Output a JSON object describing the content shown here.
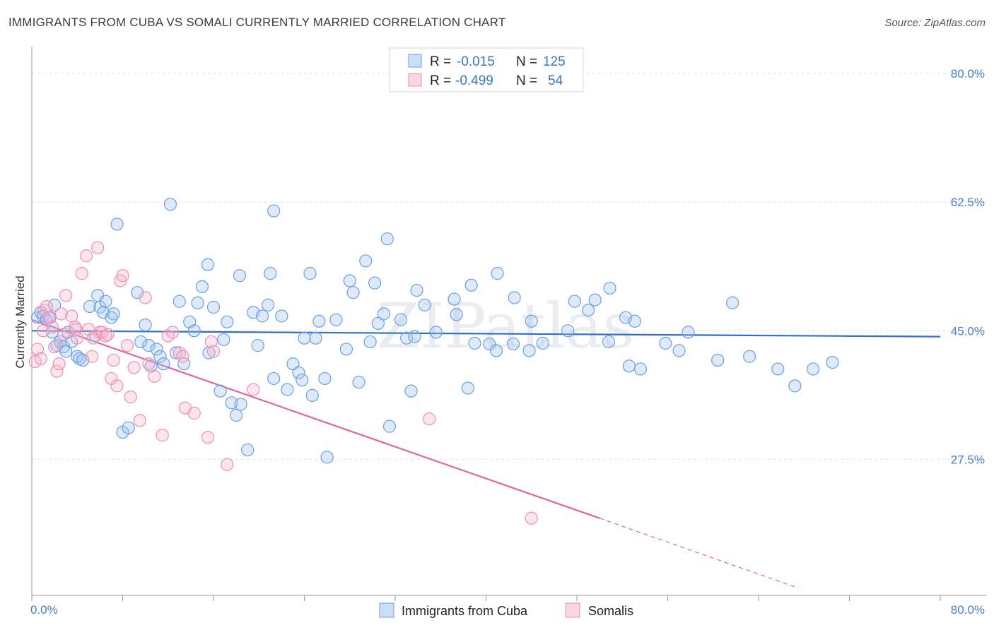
{
  "title": "IMMIGRANTS FROM CUBA VS SOMALI CURRENTLY MARRIED CORRELATION CHART",
  "source": "Source: ZipAtlas.com",
  "watermark": "ZIPatlas",
  "legend": {
    "rows": [
      {
        "r_label": "R =",
        "r_value": "-0.015",
        "n_label": "N =",
        "n_value": "125",
        "color": "#6c9fe0"
      },
      {
        "r_label": "R =",
        "r_value": "-0.499",
        "n_label": "N =",
        "n_value": "54",
        "color": "#ee8fb0"
      }
    ]
  },
  "chart_data": {
    "type": "scatter",
    "xlabel": "",
    "ylabel": "Currently Married",
    "xlim": [
      0,
      80
    ],
    "ylim": [
      9,
      82.5
    ],
    "x_tick_labels": [
      "0.0%",
      "80.0%"
    ],
    "y_ticks": [
      27.5,
      45.0,
      62.5,
      80.0
    ],
    "y_tick_labels": [
      "27.5%",
      "45.0%",
      "62.5%",
      "80.0%"
    ],
    "grid": true,
    "legend_position": "top-center",
    "series": [
      {
        "name": "Immigrants from Cuba",
        "color": "#6c9fe0",
        "fill": "rgba(160,195,240,0.35)",
        "trend": {
          "x": [
            0,
            80
          ],
          "y": [
            45.0,
            44.2
          ]
        },
        "points": [
          [
            0.5,
            46.8
          ],
          [
            0.8,
            47.5
          ],
          [
            1.0,
            47.0
          ],
          [
            1.3,
            46.5
          ],
          [
            1.6,
            46.8
          ],
          [
            1.8,
            44.8
          ],
          [
            2.0,
            48.5
          ],
          [
            2.2,
            43.0
          ],
          [
            2.5,
            43.5
          ],
          [
            2.8,
            42.8
          ],
          [
            3.0,
            42.2
          ],
          [
            3.2,
            44.8
          ],
          [
            3.5,
            43.5
          ],
          [
            4.0,
            41.5
          ],
          [
            4.2,
            41.2
          ],
          [
            4.5,
            41.0
          ],
          [
            5.1,
            48.3
          ],
          [
            5.6,
            44.3
          ],
          [
            5.8,
            49.8
          ],
          [
            6.0,
            48.2
          ],
          [
            6.3,
            47.5
          ],
          [
            6.5,
            49.0
          ],
          [
            7.0,
            46.8
          ],
          [
            7.2,
            47.3
          ],
          [
            7.5,
            59.5
          ],
          [
            8.0,
            31.2
          ],
          [
            8.5,
            31.8
          ],
          [
            9.3,
            50.2
          ],
          [
            9.6,
            43.5
          ],
          [
            10.0,
            45.8
          ],
          [
            10.3,
            43.0
          ],
          [
            10.5,
            40.2
          ],
          [
            11.0,
            42.5
          ],
          [
            11.3,
            41.5
          ],
          [
            11.6,
            40.5
          ],
          [
            12.2,
            62.2
          ],
          [
            12.7,
            42.0
          ],
          [
            13.0,
            49.0
          ],
          [
            13.4,
            40.5
          ],
          [
            13.9,
            46.2
          ],
          [
            14.3,
            45.0
          ],
          [
            14.6,
            48.8
          ],
          [
            15.0,
            51.0
          ],
          [
            15.5,
            54.0
          ],
          [
            15.6,
            42.0
          ],
          [
            16.0,
            48.2
          ],
          [
            16.6,
            36.8
          ],
          [
            16.9,
            43.8
          ],
          [
            17.2,
            46.2
          ],
          [
            17.6,
            35.2
          ],
          [
            18.0,
            33.5
          ],
          [
            18.3,
            52.5
          ],
          [
            18.4,
            35.0
          ],
          [
            19.0,
            28.8
          ],
          [
            19.5,
            47.5
          ],
          [
            19.9,
            43.0
          ],
          [
            20.3,
            47.0
          ],
          [
            20.8,
            48.5
          ],
          [
            21.0,
            52.8
          ],
          [
            21.3,
            61.3
          ],
          [
            21.3,
            38.5
          ],
          [
            22.0,
            47.0
          ],
          [
            22.5,
            37.0
          ],
          [
            23.0,
            40.5
          ],
          [
            23.5,
            39.3
          ],
          [
            23.8,
            38.3
          ],
          [
            24.0,
            44.0
          ],
          [
            24.5,
            52.8
          ],
          [
            24.7,
            36.2
          ],
          [
            25.0,
            44.0
          ],
          [
            25.3,
            46.3
          ],
          [
            25.8,
            38.5
          ],
          [
            26.0,
            27.8
          ],
          [
            26.8,
            46.5
          ],
          [
            27.7,
            42.5
          ],
          [
            28.0,
            51.8
          ],
          [
            28.3,
            50.2
          ],
          [
            28.8,
            38.0
          ],
          [
            29.4,
            54.5
          ],
          [
            29.8,
            43.5
          ],
          [
            30.2,
            51.5
          ],
          [
            30.5,
            46.0
          ],
          [
            31.0,
            47.3
          ],
          [
            31.3,
            57.5
          ],
          [
            31.5,
            32.0
          ],
          [
            32.5,
            46.5
          ],
          [
            33.0,
            44.0
          ],
          [
            33.4,
            36.8
          ],
          [
            33.7,
            44.2
          ],
          [
            33.9,
            50.5
          ],
          [
            34.6,
            48.5
          ],
          [
            35.6,
            44.8
          ],
          [
            37.2,
            49.3
          ],
          [
            37.4,
            47.2
          ],
          [
            38.4,
            37.2
          ],
          [
            38.7,
            51.2
          ],
          [
            39.0,
            43.3
          ],
          [
            40.3,
            43.2
          ],
          [
            40.9,
            42.3
          ],
          [
            41.0,
            52.8
          ],
          [
            42.4,
            43.2
          ],
          [
            42.5,
            49.5
          ],
          [
            43.8,
            42.3
          ],
          [
            44.0,
            46.3
          ],
          [
            45.0,
            43.3
          ],
          [
            47.2,
            45.0
          ],
          [
            47.8,
            49.0
          ],
          [
            49.0,
            47.8
          ],
          [
            49.6,
            49.2
          ],
          [
            50.8,
            43.5
          ],
          [
            50.9,
            50.8
          ],
          [
            52.3,
            46.8
          ],
          [
            52.6,
            40.2
          ],
          [
            53.1,
            46.3
          ],
          [
            53.6,
            39.8
          ],
          [
            55.8,
            43.3
          ],
          [
            57.0,
            42.3
          ],
          [
            57.8,
            44.8
          ],
          [
            60.4,
            41.0
          ],
          [
            61.7,
            48.8
          ],
          [
            63.2,
            41.5
          ],
          [
            65.7,
            39.8
          ],
          [
            67.2,
            37.5
          ],
          [
            68.8,
            39.8
          ],
          [
            70.5,
            40.7
          ]
        ]
      },
      {
        "name": "Somalis",
        "color": "#ee8fb0",
        "fill": "rgba(245,180,205,0.35)",
        "trend": {
          "x": [
            0,
            50
          ],
          "y": [
            46.5,
            19.5
          ]
        },
        "trend_dashed": {
          "x": [
            50,
            67.5
          ],
          "y": [
            19.5,
            10.0
          ]
        },
        "points": [
          [
            0.3,
            40.8
          ],
          [
            0.5,
            42.5
          ],
          [
            0.8,
            41.2
          ],
          [
            1.0,
            45.0
          ],
          [
            1.1,
            47.8
          ],
          [
            1.3,
            48.3
          ],
          [
            1.5,
            46.8
          ],
          [
            1.8,
            45.5
          ],
          [
            2.0,
            42.8
          ],
          [
            2.2,
            39.5
          ],
          [
            2.4,
            40.5
          ],
          [
            2.6,
            47.3
          ],
          [
            2.8,
            44.5
          ],
          [
            3.0,
            49.8
          ],
          [
            3.5,
            47.0
          ],
          [
            3.8,
            45.5
          ],
          [
            3.9,
            45.2
          ],
          [
            4.0,
            44.0
          ],
          [
            4.4,
            52.8
          ],
          [
            4.8,
            55.2
          ],
          [
            5.0,
            45.2
          ],
          [
            5.3,
            41.5
          ],
          [
            5.4,
            44.0
          ],
          [
            5.8,
            56.3
          ],
          [
            6.0,
            44.8
          ],
          [
            6.2,
            44.8
          ],
          [
            6.5,
            44.3
          ],
          [
            6.7,
            44.5
          ],
          [
            7.0,
            38.5
          ],
          [
            7.2,
            41.0
          ],
          [
            7.5,
            37.5
          ],
          [
            7.8,
            51.8
          ],
          [
            8.0,
            52.5
          ],
          [
            8.4,
            43.0
          ],
          [
            8.7,
            36.0
          ],
          [
            9.0,
            40.0
          ],
          [
            9.5,
            32.8
          ],
          [
            10.0,
            49.5
          ],
          [
            10.3,
            40.5
          ],
          [
            10.8,
            38.8
          ],
          [
            11.5,
            30.8
          ],
          [
            12.0,
            44.3
          ],
          [
            12.4,
            44.8
          ],
          [
            13.0,
            42.0
          ],
          [
            13.3,
            41.5
          ],
          [
            13.5,
            34.5
          ],
          [
            14.3,
            33.8
          ],
          [
            15.5,
            30.5
          ],
          [
            15.8,
            43.5
          ],
          [
            16.0,
            42.2
          ],
          [
            17.2,
            26.8
          ],
          [
            19.5,
            37.0
          ],
          [
            35.0,
            33.0
          ],
          [
            44.0,
            19.5
          ]
        ]
      }
    ]
  }
}
